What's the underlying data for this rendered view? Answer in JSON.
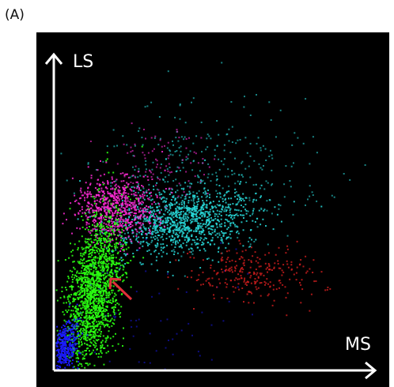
{
  "figure": {
    "panel_label": "(A)",
    "x_axis_label": "MS",
    "y_axis_label": "LS"
  },
  "clusters": [
    {
      "name": "blue",
      "color": "#1a1aff"
    },
    {
      "name": "green",
      "color": "#2aff12"
    },
    {
      "name": "magenta",
      "color": "#ff2bd6"
    },
    {
      "name": "cyan",
      "color": "#28d8d8"
    },
    {
      "name": "red",
      "color": "#d21e1e"
    }
  ],
  "annotation": {
    "arrow_color": "#e0303a"
  },
  "colors": {
    "background": "#000000",
    "axis": "#ffffff"
  }
}
